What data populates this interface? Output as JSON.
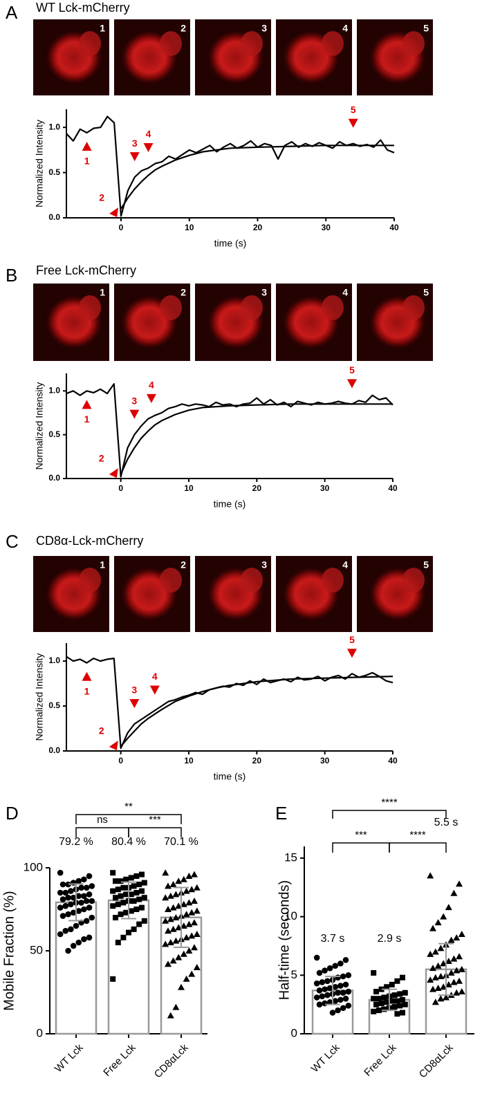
{
  "chart_data": [
    {
      "type": "line",
      "panel": "A",
      "title": "WT Lck-mCherry",
      "frames": [
        "1",
        "2",
        "3",
        "4",
        "5"
      ],
      "xlabel": "time (s)",
      "ylabel": "Normalized Intensity",
      "xlim": [
        -8,
        40
      ],
      "ylim": [
        0,
        1.2
      ],
      "xticks": [
        0,
        10,
        20,
        30,
        40
      ],
      "yticks": [
        {
          "value": 0,
          "label": "0.0"
        },
        {
          "value": 0.5,
          "label": "0.5"
        },
        {
          "value": 1,
          "label": "1.0"
        }
      ],
      "series": [
        {
          "color": "#000000",
          "x": [
            -8,
            -7,
            -6,
            -5,
            -4,
            -3,
            -2,
            -1,
            0,
            1,
            2,
            3,
            4,
            5,
            6,
            7,
            8,
            9,
            10,
            11,
            12,
            13,
            14,
            15,
            16,
            17,
            18,
            19,
            20,
            21,
            22,
            23,
            24,
            25,
            26,
            27,
            28,
            29,
            30,
            31,
            32,
            33,
            34,
            35,
            36,
            37,
            38,
            39,
            40
          ],
          "values": [
            0.93,
            0.85,
            0.98,
            0.94,
            0.99,
            1.0,
            1.12,
            1.05,
            0.02,
            0.3,
            0.45,
            0.52,
            0.55,
            0.6,
            0.62,
            0.68,
            0.65,
            0.7,
            0.75,
            0.72,
            0.76,
            0.8,
            0.73,
            0.78,
            0.82,
            0.77,
            0.8,
            0.85,
            0.78,
            0.82,
            0.8,
            0.65,
            0.8,
            0.84,
            0.78,
            0.82,
            0.79,
            0.83,
            0.8,
            0.77,
            0.84,
            0.8,
            0.82,
            0.79,
            0.81,
            0.78,
            0.86,
            0.75,
            0.72
          ]
        },
        {
          "color": "#000000",
          "x": [
            0,
            1,
            2,
            3,
            4,
            5,
            6,
            8,
            10,
            12,
            14,
            16,
            20,
            25,
            30,
            35,
            40
          ],
          "values": [
            0.1,
            0.22,
            0.32,
            0.4,
            0.47,
            0.53,
            0.57,
            0.64,
            0.69,
            0.73,
            0.75,
            0.77,
            0.78,
            0.79,
            0.8,
            0.8,
            0.8
          ]
        }
      ],
      "annotations": [
        {
          "label": "1",
          "x": -5
        },
        {
          "label": "2",
          "x": -1
        },
        {
          "label": "3",
          "x": 2
        },
        {
          "label": "4",
          "x": 4
        },
        {
          "label": "5",
          "x": 34
        }
      ],
      "annotation_color": "#dd0000"
    },
    {
      "type": "line",
      "panel": "B",
      "title": "Free Lck-mCherry",
      "frames": [
        "1",
        "2",
        "3",
        "4",
        "5"
      ],
      "xlabel": "time (s)",
      "ylabel": "Normalized Intensity",
      "xlim": [
        -8,
        40
      ],
      "ylim": [
        0,
        1.2
      ],
      "xticks": [
        0,
        10,
        20,
        30,
        40
      ],
      "yticks": [
        {
          "value": 0,
          "label": "0.0"
        },
        {
          "value": 0.5,
          "label": "0.5"
        },
        {
          "value": 1,
          "label": "1.0"
        }
      ],
      "series": [
        {
          "color": "#000000",
          "x": [
            -8,
            -7,
            -6,
            -5,
            -4,
            -3,
            -2,
            -1,
            0,
            1,
            2,
            3,
            4,
            5,
            6,
            7,
            8,
            9,
            10,
            11,
            12,
            13,
            14,
            15,
            16,
            17,
            18,
            19,
            20,
            21,
            22,
            23,
            24,
            25,
            26,
            27,
            28,
            29,
            30,
            31,
            32,
            33,
            34,
            35,
            36,
            37,
            38,
            39,
            40
          ],
          "values": [
            0.97,
            1.0,
            0.95,
            1.0,
            0.98,
            1.02,
            0.97,
            1.08,
            0.02,
            0.35,
            0.5,
            0.6,
            0.68,
            0.72,
            0.75,
            0.8,
            0.82,
            0.85,
            0.83,
            0.85,
            0.84,
            0.82,
            0.87,
            0.84,
            0.85,
            0.82,
            0.85,
            0.86,
            0.92,
            0.85,
            0.9,
            0.84,
            0.87,
            0.82,
            0.88,
            0.86,
            0.84,
            0.87,
            0.85,
            0.86,
            0.88,
            0.86,
            0.85,
            0.89,
            0.87,
            0.95,
            0.9,
            0.92,
            0.84
          ]
        },
        {
          "color": "#000000",
          "x": [
            0,
            1,
            2,
            3,
            4,
            5,
            6,
            8,
            10,
            12,
            14,
            16,
            20,
            25,
            30,
            35,
            40
          ],
          "values": [
            0.05,
            0.22,
            0.35,
            0.46,
            0.54,
            0.61,
            0.66,
            0.73,
            0.78,
            0.81,
            0.82,
            0.83,
            0.84,
            0.85,
            0.85,
            0.85,
            0.85
          ]
        }
      ],
      "annotations": [
        {
          "label": "1",
          "x": -5
        },
        {
          "label": "2",
          "x": -1
        },
        {
          "label": "3",
          "x": 2
        },
        {
          "label": "4",
          "x": 4.5
        },
        {
          "label": "5",
          "x": 34
        }
      ],
      "annotation_color": "#dd0000"
    },
    {
      "type": "line",
      "panel": "C",
      "title": "CD8α-Lck-mCherry",
      "frames": [
        "1",
        "2",
        "3",
        "4",
        "5"
      ],
      "xlabel": "time (s)",
      "ylabel": "Normalized Intensity",
      "xlim": [
        -8,
        40
      ],
      "ylim": [
        0,
        1.2
      ],
      "xticks": [
        0,
        10,
        20,
        30,
        40
      ],
      "yticks": [
        {
          "value": 0,
          "label": "0.0"
        },
        {
          "value": 0.5,
          "label": "0.5"
        },
        {
          "value": 1,
          "label": "1.0"
        }
      ],
      "series": [
        {
          "color": "#000000",
          "x": [
            -8,
            -7,
            -6,
            -5,
            -4,
            -3,
            -2,
            -1,
            0,
            1,
            2,
            3,
            4,
            5,
            6,
            7,
            8,
            9,
            10,
            11,
            12,
            13,
            14,
            15,
            16,
            17,
            18,
            19,
            20,
            21,
            22,
            23,
            24,
            25,
            26,
            27,
            28,
            29,
            30,
            31,
            32,
            33,
            34,
            35,
            36,
            37,
            38,
            39,
            40
          ],
          "values": [
            1.05,
            1.0,
            1.02,
            0.98,
            1.03,
            1.0,
            1.02,
            1.03,
            0.03,
            0.2,
            0.3,
            0.35,
            0.4,
            0.45,
            0.5,
            0.55,
            0.57,
            0.6,
            0.62,
            0.65,
            0.63,
            0.68,
            0.7,
            0.72,
            0.71,
            0.75,
            0.73,
            0.78,
            0.74,
            0.8,
            0.76,
            0.78,
            0.8,
            0.77,
            0.82,
            0.79,
            0.8,
            0.83,
            0.78,
            0.82,
            0.84,
            0.8,
            0.86,
            0.82,
            0.84,
            0.87,
            0.83,
            0.78,
            0.76
          ]
        },
        {
          "color": "#000000",
          "x": [
            0,
            1,
            2,
            3,
            4,
            5,
            6,
            8,
            10,
            12,
            14,
            16,
            20,
            25,
            30,
            35,
            40
          ],
          "values": [
            0.05,
            0.14,
            0.22,
            0.3,
            0.36,
            0.41,
            0.46,
            0.55,
            0.61,
            0.66,
            0.7,
            0.73,
            0.77,
            0.8,
            0.81,
            0.82,
            0.83
          ]
        }
      ],
      "annotations": [
        {
          "label": "1",
          "x": -5
        },
        {
          "label": "2",
          "x": -1
        },
        {
          "label": "3",
          "x": 2
        },
        {
          "label": "4",
          "x": 5
        },
        {
          "label": "5",
          "x": 34
        }
      ],
      "annotation_color": "#dd0000"
    },
    {
      "type": "bar",
      "panel": "D",
      "ylabel": "Mobile Fraction (%)",
      "categories": [
        "WT Lck",
        "Free Lck",
        "CD8αLck"
      ],
      "values": [
        79.2,
        80.4,
        70.1
      ],
      "value_labels": [
        "79.2 %",
        "80.4 %",
        "70.1 %"
      ],
      "errors": [
        11,
        11,
        18
      ],
      "points": [
        [
          97,
          95,
          93,
          92,
          91,
          90,
          90,
          89,
          88,
          88,
          87,
          86,
          85,
          85,
          84,
          83,
          83,
          82,
          82,
          81,
          80,
          80,
          79,
          79,
          78,
          77,
          76,
          76,
          75,
          74,
          73,
          72,
          71,
          70,
          68,
          67,
          65,
          63,
          62,
          60,
          58,
          57,
          55,
          53,
          50
        ],
        [
          97,
          96,
          95,
          94,
          93,
          92,
          92,
          91,
          90,
          89,
          88,
          88,
          87,
          86,
          86,
          85,
          84,
          84,
          83,
          82,
          82,
          81,
          80,
          80,
          79,
          78,
          77,
          76,
          75,
          74,
          73,
          72,
          70,
          68,
          66,
          63,
          61,
          58,
          55,
          33
        ],
        [
          97,
          96,
          95,
          93,
          92,
          90,
          89,
          88,
          87,
          86,
          85,
          84,
          83,
          82,
          80,
          79,
          78,
          77,
          76,
          75,
          74,
          73,
          72,
          71,
          70,
          69,
          68,
          67,
          66,
          65,
          64,
          63,
          62,
          60,
          59,
          58,
          57,
          56,
          55,
          54,
          52,
          50,
          48,
          46,
          44,
          42,
          40,
          36,
          33,
          28,
          16,
          11
        ]
      ],
      "markers": [
        "circle",
        "square",
        "triangle"
      ],
      "color": "#999999",
      "point_color": "#000000",
      "ylim": [
        0,
        100
      ],
      "yticks": [
        0,
        50,
        100
      ],
      "comparisons": [
        {
          "pair": [
            0,
            2
          ],
          "label": "**"
        },
        {
          "pair": [
            0,
            1
          ],
          "label": "ns"
        },
        {
          "pair": [
            1,
            2
          ],
          "label": "***"
        }
      ]
    },
    {
      "type": "bar",
      "panel": "E",
      "ylabel": "Half-time (seconds)",
      "categories": [
        "WT Lck",
        "Free Lck",
        "CD8αLck"
      ],
      "values": [
        3.7,
        2.9,
        5.5
      ],
      "value_labels": [
        "3.7 s",
        "2.9 s",
        "5.5 s"
      ],
      "errors": [
        1.2,
        0.9,
        2.2
      ],
      "points": [
        [
          6.5,
          6.3,
          6.0,
          5.8,
          5.6,
          5.4,
          5.2,
          5.0,
          4.9,
          4.8,
          4.6,
          4.5,
          4.4,
          4.3,
          4.2,
          4.1,
          4.0,
          3.9,
          3.8,
          3.7,
          3.6,
          3.5,
          3.5,
          3.4,
          3.3,
          3.2,
          3.1,
          3.0,
          2.9,
          2.8,
          2.7,
          2.6,
          2.5,
          2.4,
          2.2,
          2.0,
          1.8
        ],
        [
          5.2,
          4.8,
          4.5,
          4.2,
          4.0,
          3.8,
          3.6,
          3.5,
          3.4,
          3.3,
          3.2,
          3.1,
          3.0,
          3.0,
          2.9,
          2.8,
          2.8,
          2.7,
          2.6,
          2.5,
          2.5,
          2.4,
          2.3,
          2.2,
          2.1,
          2.0,
          1.9,
          1.8,
          1.7
        ],
        [
          13.5,
          12.8,
          12.0,
          10.8,
          10.0,
          9.5,
          9.0,
          8.5,
          8.2,
          8.0,
          7.6,
          7.3,
          7.0,
          6.8,
          6.6,
          6.4,
          6.2,
          6.0,
          5.8,
          5.6,
          5.5,
          5.4,
          5.2,
          5.0,
          4.9,
          4.8,
          4.6,
          4.5,
          4.4,
          4.2,
          4.0,
          3.9,
          3.8,
          3.6,
          3.5,
          3.3,
          3.1,
          3.0,
          2.7
        ]
      ],
      "markers": [
        "circle",
        "square",
        "triangle"
      ],
      "color": "#999999",
      "point_color": "#000000",
      "ylim": [
        0,
        16
      ],
      "yticks": [
        0,
        5,
        10,
        15
      ],
      "comparisons": [
        {
          "pair": [
            0,
            2
          ],
          "label": "****"
        },
        {
          "pair": [
            0,
            1
          ],
          "label": "***"
        },
        {
          "pair": [
            1,
            2
          ],
          "label": "****"
        }
      ]
    }
  ]
}
